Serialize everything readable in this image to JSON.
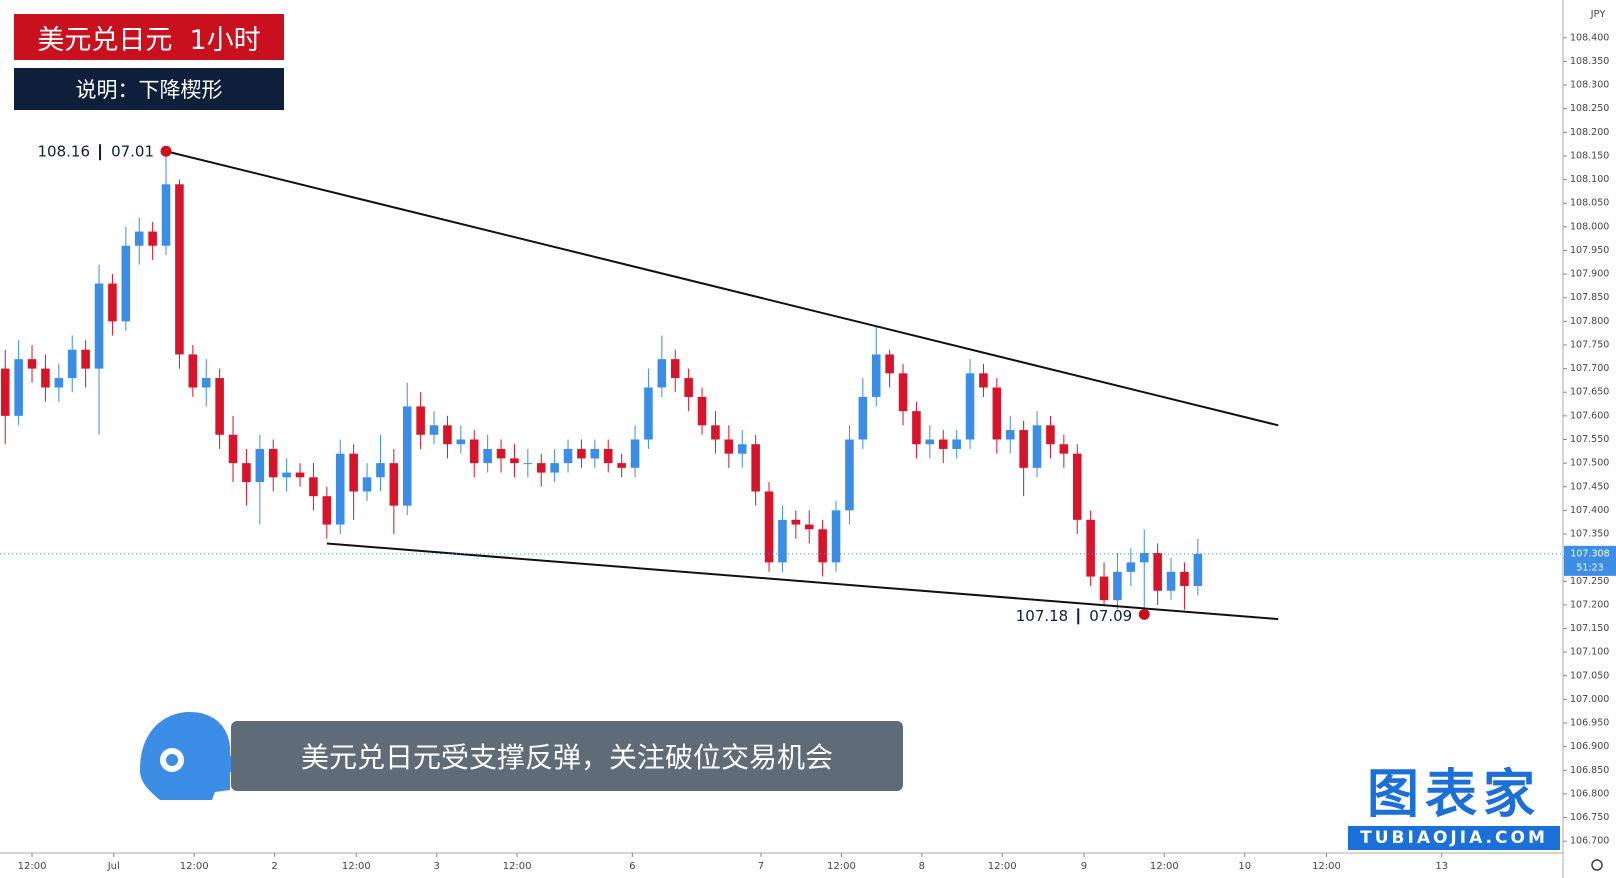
{
  "chart_data": {
    "type": "candlestick",
    "title": "美元兑日元  1小时",
    "subtitle": "说明：下降楔形",
    "caption": "美元兑日元受支撑反弹，关注破位交易机会",
    "currency": "JPY",
    "countdown": "51:23",
    "up_color": "#3b8de6",
    "down_color": "#d8142a",
    "open": [
      107.7,
      107.6,
      107.72,
      107.7,
      107.66,
      107.68,
      107.74,
      107.7,
      107.88,
      107.8,
      107.96,
      107.99,
      107.96,
      108.09,
      107.73,
      107.66,
      107.68,
      107.56,
      107.5,
      107.46,
      107.53,
      107.47,
      107.48,
      107.47,
      107.43,
      107.37,
      107.52,
      107.44,
      107.47,
      107.5,
      107.41,
      107.62,
      107.56,
      107.58,
      107.54,
      107.55,
      107.5,
      107.53,
      107.51,
      107.5,
      107.5,
      107.48,
      107.5,
      107.53,
      107.51,
      107.53,
      107.5,
      107.49,
      107.55,
      107.66,
      107.72,
      107.68,
      107.64,
      107.58,
      107.55,
      107.52,
      107.54,
      107.44,
      107.29,
      107.38,
      107.37,
      107.36,
      107.29,
      107.4,
      107.55,
      107.64,
      107.73,
      107.69,
      107.61,
      107.54,
      107.55,
      107.53,
      107.55,
      107.69,
      107.66,
      107.55,
      107.57,
      107.49,
      107.58,
      107.54,
      107.52,
      107.38,
      107.26,
      107.21,
      107.27,
      107.29,
      107.31,
      107.23,
      107.27,
      107.24
    ],
    "high": [
      107.74,
      107.76,
      107.75,
      107.73,
      107.71,
      107.77,
      107.76,
      107.92,
      107.9,
      108.0,
      108.02,
      108.01,
      108.16,
      108.1,
      107.75,
      107.72,
      107.7,
      107.6,
      107.53,
      107.56,
      107.55,
      107.51,
      107.5,
      107.5,
      107.45,
      107.55,
      107.54,
      107.5,
      107.56,
      107.53,
      107.67,
      107.65,
      107.61,
      107.6,
      107.58,
      107.57,
      107.56,
      107.55,
      107.54,
      107.53,
      107.52,
      107.53,
      107.55,
      107.55,
      107.55,
      107.55,
      107.52,
      107.58,
      107.7,
      107.77,
      107.74,
      107.7,
      107.66,
      107.61,
      107.58,
      107.57,
      107.56,
      107.46,
      107.41,
      107.4,
      107.4,
      107.38,
      107.42,
      107.58,
      107.68,
      107.79,
      107.74,
      107.71,
      107.63,
      107.58,
      107.57,
      107.57,
      107.72,
      107.71,
      107.68,
      107.6,
      107.59,
      107.61,
      107.6,
      107.56,
      107.54,
      107.4,
      107.29,
      107.31,
      107.32,
      107.36,
      107.33,
      107.3,
      107.29,
      107.34
    ],
    "low": [
      107.54,
      107.58,
      107.67,
      107.63,
      107.63,
      107.65,
      107.66,
      107.56,
      107.77,
      107.78,
      107.92,
      107.93,
      107.94,
      107.7,
      107.64,
      107.62,
      107.53,
      107.46,
      107.41,
      107.37,
      107.44,
      107.44,
      107.45,
      107.4,
      107.34,
      107.35,
      107.38,
      107.42,
      107.44,
      107.35,
      107.39,
      107.53,
      107.54,
      107.51,
      107.52,
      107.47,
      107.48,
      107.48,
      107.47,
      107.47,
      107.45,
      107.46,
      107.48,
      107.49,
      107.49,
      107.48,
      107.47,
      107.47,
      107.53,
      107.64,
      107.65,
      107.61,
      107.56,
      107.52,
      107.49,
      107.49,
      107.41,
      107.27,
      107.27,
      107.34,
      107.33,
      107.26,
      107.27,
      107.37,
      107.53,
      107.62,
      107.66,
      107.58,
      107.51,
      107.51,
      107.5,
      107.51,
      107.53,
      107.64,
      107.52,
      107.52,
      107.43,
      107.47,
      107.51,
      107.49,
      107.35,
      107.24,
      107.2,
      107.19,
      107.24,
      107.18,
      107.2,
      107.21,
      107.19,
      107.22
    ],
    "close": [
      107.6,
      107.72,
      107.7,
      107.66,
      107.68,
      107.74,
      107.7,
      107.88,
      107.8,
      107.96,
      107.99,
      107.96,
      108.09,
      107.73,
      107.66,
      107.68,
      107.56,
      107.5,
      107.46,
      107.53,
      107.47,
      107.48,
      107.47,
      107.43,
      107.37,
      107.52,
      107.44,
      107.47,
      107.5,
      107.41,
      107.62,
      107.56,
      107.58,
      107.54,
      107.55,
      107.5,
      107.53,
      107.51,
      107.5,
      107.5,
      107.48,
      107.5,
      107.53,
      107.51,
      107.53,
      107.5,
      107.49,
      107.55,
      107.66,
      107.72,
      107.68,
      107.64,
      107.58,
      107.55,
      107.52,
      107.54,
      107.44,
      107.29,
      107.38,
      107.37,
      107.36,
      107.29,
      107.4,
      107.55,
      107.64,
      107.73,
      107.69,
      107.61,
      107.54,
      107.55,
      107.53,
      107.55,
      107.69,
      107.66,
      107.55,
      107.57,
      107.49,
      107.58,
      107.54,
      107.52,
      107.38,
      107.26,
      107.21,
      107.27,
      107.29,
      107.31,
      107.23,
      107.27,
      107.24,
      107.308
    ],
    "xlim": [
      -0.39,
      116.25
    ],
    "ylim": [
      106.675,
      108.48
    ],
    "xticks": [
      {
        "value": 2,
        "label": "12:00"
      },
      {
        "value": 8.1,
        "label": "Jul"
      },
      {
        "value": 14.1,
        "label": "12:00"
      },
      {
        "value": 20.1,
        "label": "2"
      },
      {
        "value": 26.2,
        "label": "12:00"
      },
      {
        "value": 32.2,
        "label": "3"
      },
      {
        "value": 38.2,
        "label": "12:00"
      },
      {
        "value": 46.8,
        "label": "6"
      },
      {
        "value": 56.4,
        "label": "7"
      },
      {
        "value": 62.4,
        "label": "12:00"
      },
      {
        "value": 68.4,
        "label": "8"
      },
      {
        "value": 74.4,
        "label": "12:00"
      },
      {
        "value": 80.5,
        "label": "9"
      },
      {
        "value": 86.5,
        "label": "12:00"
      },
      {
        "value": 92.5,
        "label": "10"
      },
      {
        "value": 98.6,
        "label": "12:00"
      },
      {
        "value": 107.2,
        "label": "13"
      }
    ],
    "yticks": [
      {
        "value": 106.7,
        "label": "106.700"
      },
      {
        "value": 106.75,
        "label": "106.750"
      },
      {
        "value": 106.8,
        "label": "106.800"
      },
      {
        "value": 106.85,
        "label": "106.850"
      },
      {
        "value": 106.9,
        "label": "106.900"
      },
      {
        "value": 106.95,
        "label": "106.950"
      },
      {
        "value": 107.0,
        "label": "107.000"
      },
      {
        "value": 107.05,
        "label": "107.050"
      },
      {
        "value": 107.1,
        "label": "107.100"
      },
      {
        "value": 107.15,
        "label": "107.150"
      },
      {
        "value": 107.2,
        "label": "107.200"
      },
      {
        "value": 107.25,
        "label": "107.250"
      },
      {
        "value": 107.3,
        "label": "107.300"
      },
      {
        "value": 107.35,
        "label": "107.350"
      },
      {
        "value": 107.4,
        "label": "107.400"
      },
      {
        "value": 107.45,
        "label": "107.450"
      },
      {
        "value": 107.5,
        "label": "107.500"
      },
      {
        "value": 107.55,
        "label": "107.550"
      },
      {
        "value": 107.6,
        "label": "107.600"
      },
      {
        "value": 107.65,
        "label": "107.650"
      },
      {
        "value": 107.7,
        "label": "107.700"
      },
      {
        "value": 107.75,
        "label": "107.750"
      },
      {
        "value": 107.8,
        "label": "107.800"
      },
      {
        "value": 107.85,
        "label": "107.850"
      },
      {
        "value": 107.9,
        "label": "107.900"
      },
      {
        "value": 107.95,
        "label": "107.950"
      },
      {
        "value": 108.0,
        "label": "108.000"
      },
      {
        "value": 108.05,
        "label": "108.050"
      },
      {
        "value": 108.1,
        "label": "108.100"
      },
      {
        "value": 108.15,
        "label": "108.150"
      },
      {
        "value": 108.2,
        "label": "108.200"
      },
      {
        "value": 108.25,
        "label": "108.250"
      },
      {
        "value": 108.3,
        "label": "108.300"
      },
      {
        "value": 108.35,
        "label": "108.350"
      },
      {
        "value": 108.4,
        "label": "108.400"
      }
    ],
    "trendlines": [
      {
        "x": [
          12,
          95
        ],
        "y": [
          108.16,
          107.58
        ]
      },
      {
        "x": [
          24,
          95
        ],
        "y": [
          107.33,
          107.17
        ]
      }
    ],
    "annotations": [
      {
        "x": 12,
        "anchor": "high",
        "date": "07.01"
      },
      {
        "x": 85,
        "anchor": "low",
        "date": "07.09"
      }
    ]
  },
  "logo": {
    "name": "图表家",
    "url": "TUBIAOJIA.COM"
  }
}
